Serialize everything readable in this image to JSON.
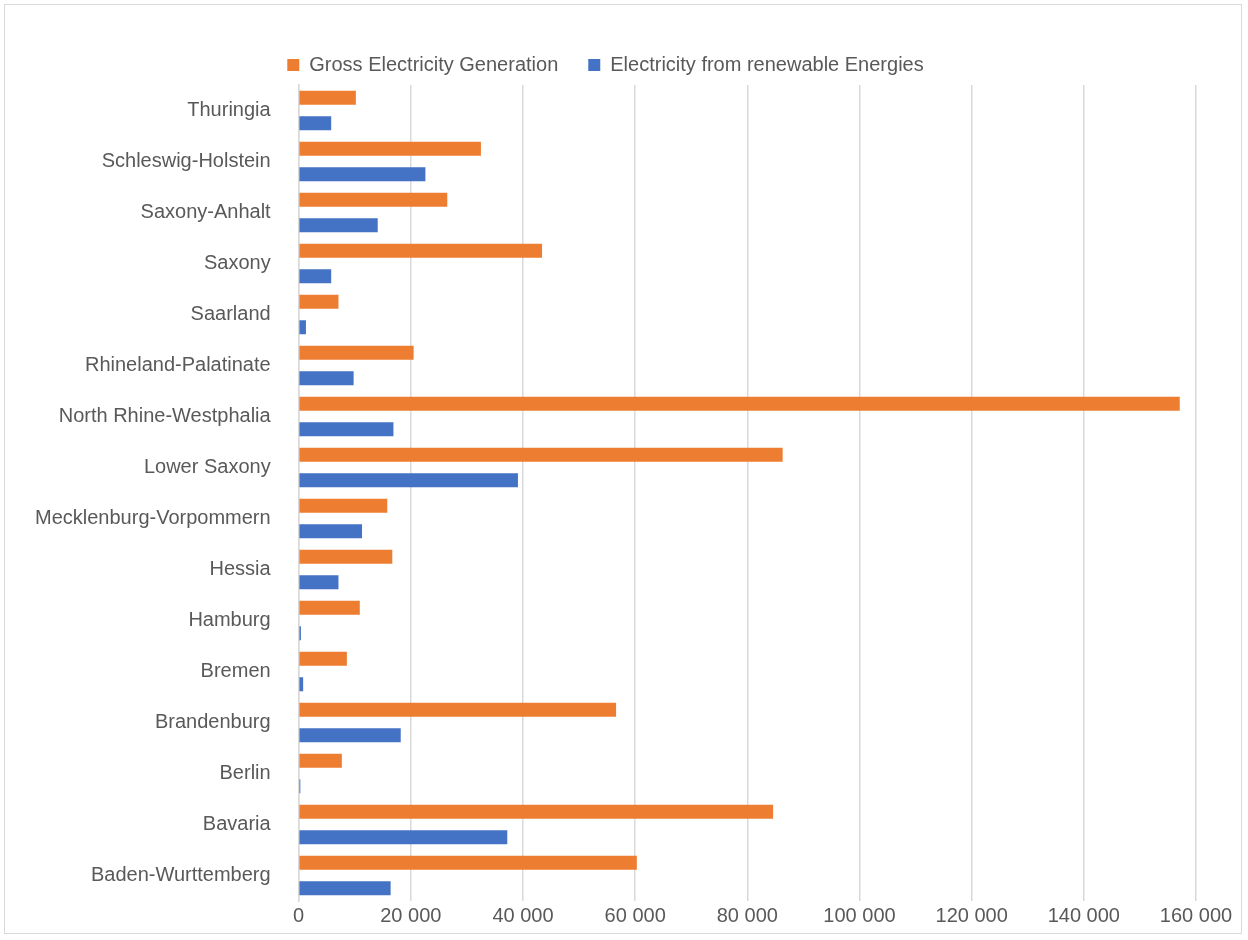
{
  "chart_data": {
    "type": "bar",
    "orientation": "horizontal",
    "categories": [
      "Thuringia",
      "Schleswig-Holstein",
      "Saxony-Anhalt",
      "Saxony",
      "Saarland",
      "Rhineland-Palatinate",
      "North Rhine-Westphalia",
      "Lower Saxony",
      "Mecklenburg-Vorpommern",
      "Hessia",
      "Hamburg",
      "Bremen",
      "Brandenburg",
      "Berlin",
      "Bavaria",
      "Baden-Wurttemberg"
    ],
    "series": [
      {
        "name": "Gross Electricity Generation",
        "color": "#ed7d31",
        "values": [
          10200,
          32500,
          26500,
          43400,
          7100,
          20500,
          157100,
          86300,
          15800,
          16700,
          10900,
          8600,
          56600,
          7700,
          84600,
          60300
        ]
      },
      {
        "name": "Electricity from renewable Energies",
        "color": "#4472c4",
        "values": [
          5800,
          22600,
          14100,
          5800,
          1300,
          9800,
          16900,
          39100,
          11300,
          7100,
          400,
          800,
          18200,
          300,
          37200,
          16400
        ]
      }
    ],
    "xlim": [
      0,
      160000
    ],
    "xticks": [
      0,
      {
        "value": 20000,
        "label": "20 000"
      },
      {
        "value": 40000,
        "label": "40 000"
      },
      {
        "value": 60000,
        "label": "60 000"
      },
      {
        "value": 80000,
        "label": "80 000"
      },
      {
        "value": 100000,
        "label": "100 000"
      },
      {
        "value": 120000,
        "label": "120 000"
      },
      {
        "value": 140000,
        "label": "140 000"
      },
      {
        "value": 160000,
        "label": "160 000"
      }
    ],
    "grid": "x",
    "legend": "top"
  }
}
